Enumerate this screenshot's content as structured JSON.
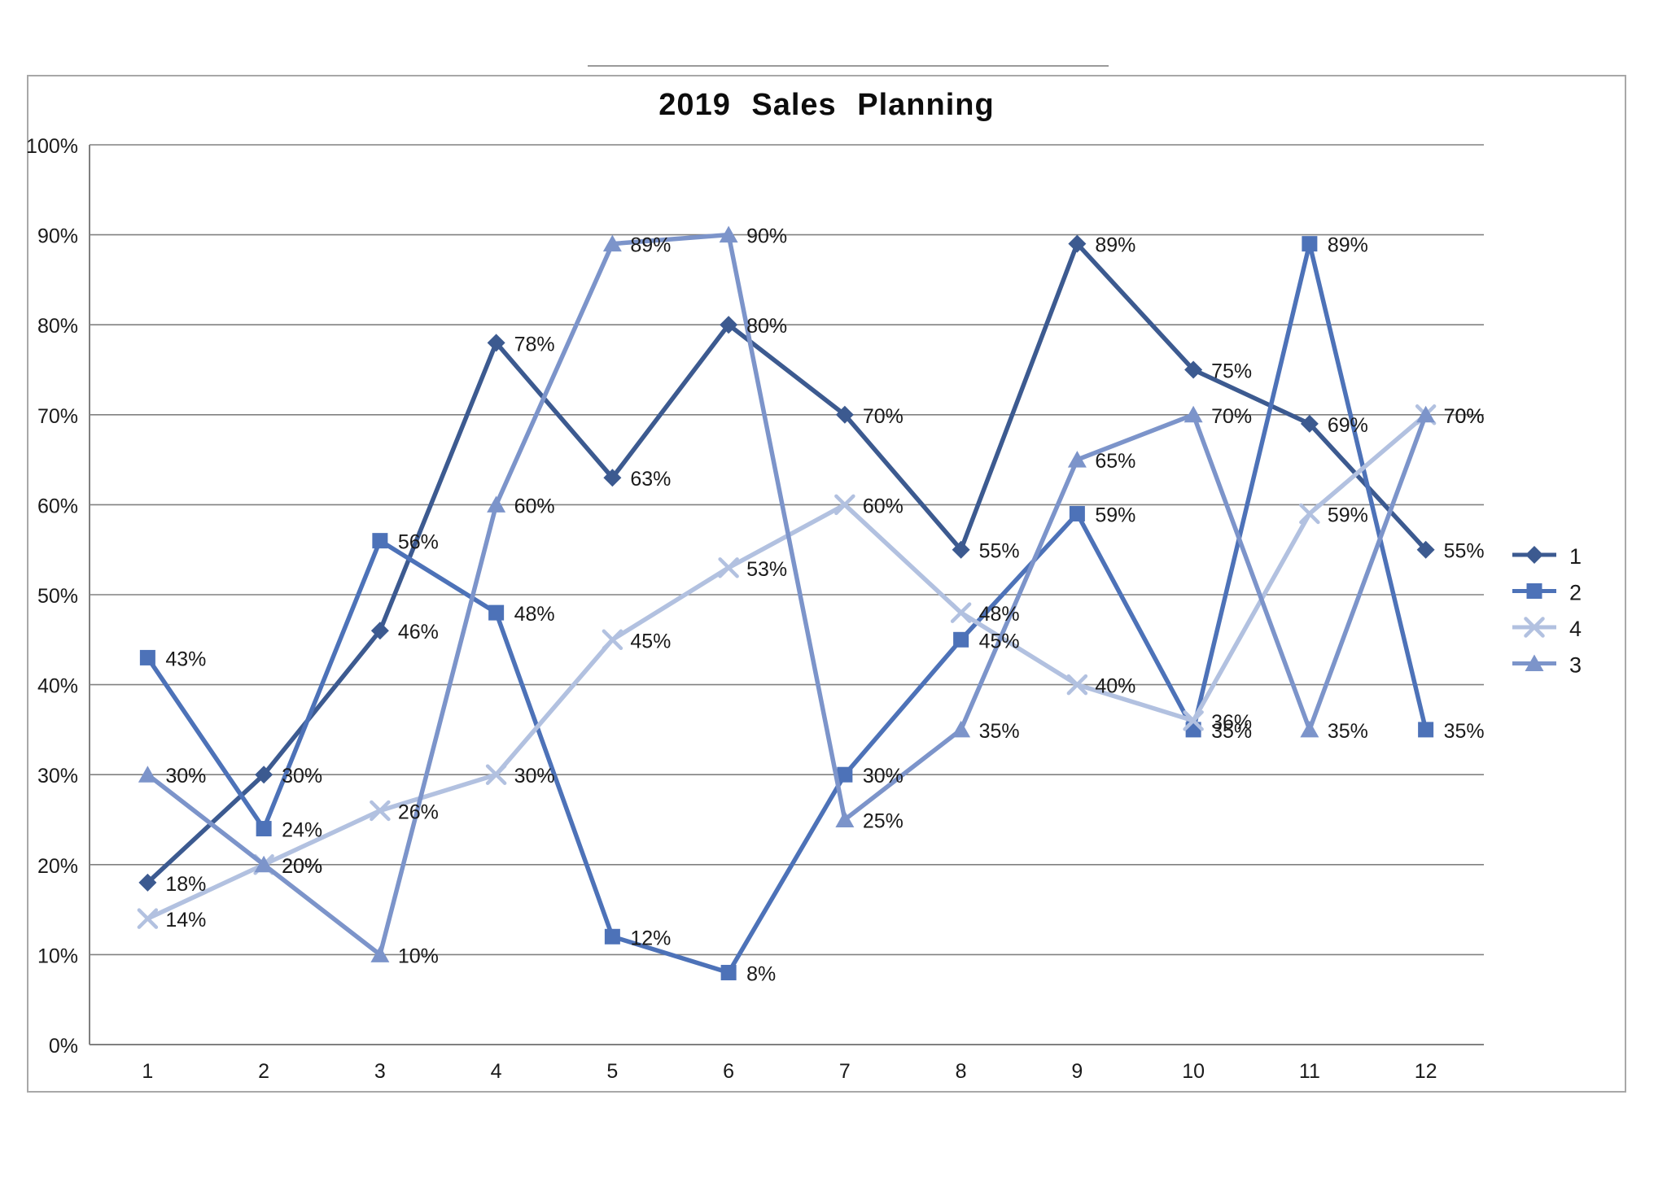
{
  "decor": {
    "top_rule_present": true,
    "frame_border_color": "#a8a8a8",
    "gridline_color": "#808080",
    "label_text_color": "#1a1a1a"
  },
  "chart_data": {
    "type": "line",
    "title": "2019 Sales Planning",
    "x_tick_labels": [
      "1",
      "2",
      "3",
      "4",
      "5",
      "6",
      "7",
      "8",
      "9",
      "10",
      "11",
      "12"
    ],
    "y_tick_labels": [
      "0%",
      "10%",
      "20%",
      "30%",
      "40%",
      "50%",
      "60%",
      "70%",
      "80%",
      "90%",
      "100%"
    ],
    "ylim": [
      0,
      100
    ],
    "y_step": 10,
    "grid": "horizontal",
    "data_labels": true,
    "label_format": "{value}%",
    "legend_position": "right",
    "series": [
      {
        "name": "1",
        "marker": "diamond",
        "color": "#3C5A90",
        "values": [
          18,
          30,
          46,
          78,
          63,
          80,
          70,
          55,
          89,
          75,
          69,
          55
        ]
      },
      {
        "name": "2",
        "marker": "square",
        "color": "#4D72B8",
        "values": [
          43,
          24,
          56,
          48,
          12,
          8,
          30,
          45,
          59,
          35,
          89,
          35
        ]
      },
      {
        "name": "4",
        "marker": "x",
        "color": "#B2C1E0",
        "values": [
          14,
          20,
          26,
          30,
          45,
          53,
          60,
          48,
          40,
          36,
          59,
          70
        ]
      },
      {
        "name": "3",
        "marker": "triangle",
        "color": "#7C94CA",
        "values": [
          30,
          20,
          10,
          60,
          89,
          90,
          25,
          35,
          65,
          70,
          35,
          70
        ]
      }
    ]
  }
}
